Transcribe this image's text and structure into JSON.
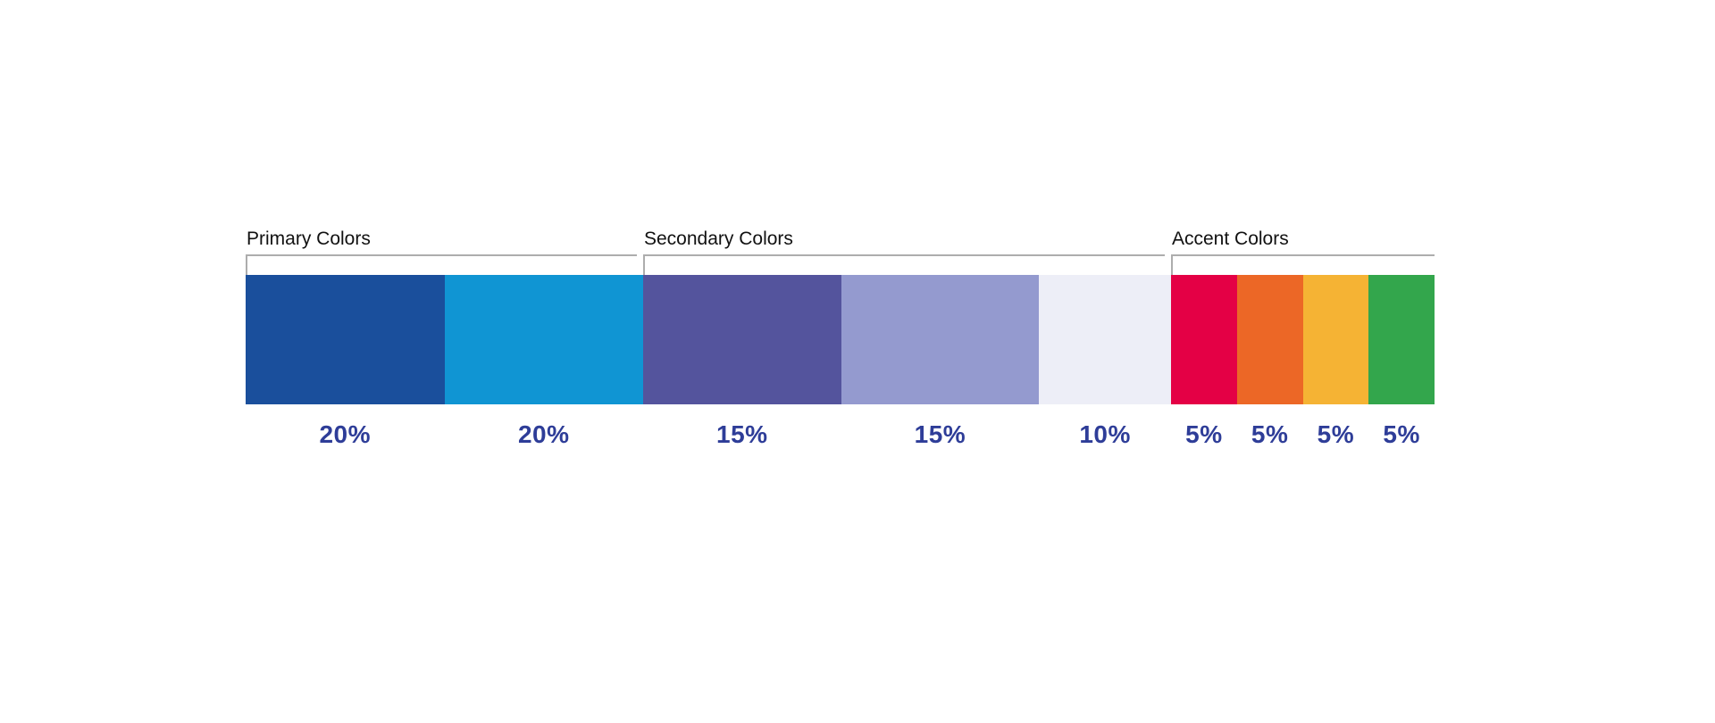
{
  "palette": {
    "percent_label_color": "#2e3d98",
    "title_color": "#111111",
    "track_border_color": "#adadad"
  },
  "groups": [
    {
      "title": "Primary Colors",
      "segments": [
        {
          "name": "dark-blue",
          "color": "#1a4f9c",
          "percent": "20%"
        },
        {
          "name": "light-blue",
          "color": "#1095d3",
          "percent": "20%"
        }
      ]
    },
    {
      "title": "Secondary Colors",
      "segments": [
        {
          "name": "purple",
          "color": "#54549d",
          "percent": "15%"
        },
        {
          "name": "light-purple",
          "color": "#949acf",
          "percent": "15%"
        },
        {
          "name": "lavender",
          "color": "#edeef7",
          "percent": "10%"
        }
      ]
    },
    {
      "title": "Accent Colors",
      "segments": [
        {
          "name": "red",
          "color": "#e40045",
          "percent": "5%"
        },
        {
          "name": "orange",
          "color": "#ec6726",
          "percent": "5%"
        },
        {
          "name": "amber",
          "color": "#f5b334",
          "percent": "5%"
        },
        {
          "name": "green",
          "color": "#33a64c",
          "percent": "5%"
        }
      ]
    }
  ],
  "chart_data": {
    "type": "bar",
    "subtype": "color-proportion-strip",
    "title": "",
    "unit": "percent",
    "groups": [
      {
        "title": "Primary Colors",
        "colors": [
          {
            "hex": "#1a4f9c",
            "value": 20
          },
          {
            "hex": "#1095d3",
            "value": 20
          }
        ]
      },
      {
        "title": "Secondary Colors",
        "colors": [
          {
            "hex": "#54549d",
            "value": 15
          },
          {
            "hex": "#949acf",
            "value": 15
          },
          {
            "hex": "#edeef7",
            "value": 10
          }
        ]
      },
      {
        "title": "Accent Colors",
        "colors": [
          {
            "hex": "#e40045",
            "value": 5
          },
          {
            "hex": "#ec6726",
            "value": 5
          },
          {
            "hex": "#f5b334",
            "value": 5
          },
          {
            "hex": "#33a64c",
            "value": 5
          }
        ]
      }
    ],
    "value_labels": [
      "20%",
      "20%",
      "15%",
      "15%",
      "10%",
      "5%",
      "5%",
      "5%",
      "5%"
    ],
    "legend_position": "none",
    "grid": false
  }
}
